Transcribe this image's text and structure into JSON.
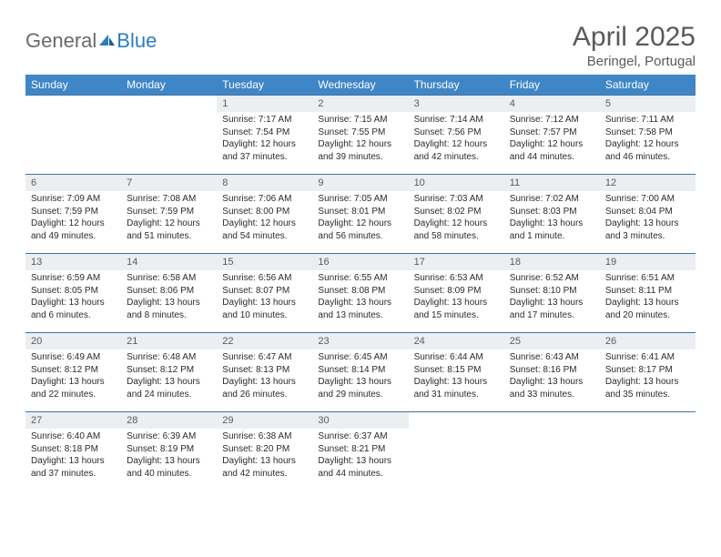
{
  "logo": {
    "first": "General",
    "second": "Blue"
  },
  "header": {
    "month_title": "April 2025",
    "location": "Beringel, Portugal"
  },
  "colors": {
    "header_bg": "#3f86c7",
    "row_divider": "#3f72a3",
    "daynum_bg": "#eceff1",
    "text_muted": "#5a5a5a"
  },
  "weekdays": [
    "Sunday",
    "Monday",
    "Tuesday",
    "Wednesday",
    "Thursday",
    "Friday",
    "Saturday"
  ],
  "weeks": [
    {
      "cells": [
        null,
        null,
        {
          "day": "1",
          "sunrise": "Sunrise: 7:17 AM",
          "sunset": "Sunset: 7:54 PM",
          "daylight": "Daylight: 12 hours and 37 minutes."
        },
        {
          "day": "2",
          "sunrise": "Sunrise: 7:15 AM",
          "sunset": "Sunset: 7:55 PM",
          "daylight": "Daylight: 12 hours and 39 minutes."
        },
        {
          "day": "3",
          "sunrise": "Sunrise: 7:14 AM",
          "sunset": "Sunset: 7:56 PM",
          "daylight": "Daylight: 12 hours and 42 minutes."
        },
        {
          "day": "4",
          "sunrise": "Sunrise: 7:12 AM",
          "sunset": "Sunset: 7:57 PM",
          "daylight": "Daylight: 12 hours and 44 minutes."
        },
        {
          "day": "5",
          "sunrise": "Sunrise: 7:11 AM",
          "sunset": "Sunset: 7:58 PM",
          "daylight": "Daylight: 12 hours and 46 minutes."
        }
      ]
    },
    {
      "cells": [
        {
          "day": "6",
          "sunrise": "Sunrise: 7:09 AM",
          "sunset": "Sunset: 7:59 PM",
          "daylight": "Daylight: 12 hours and 49 minutes."
        },
        {
          "day": "7",
          "sunrise": "Sunrise: 7:08 AM",
          "sunset": "Sunset: 7:59 PM",
          "daylight": "Daylight: 12 hours and 51 minutes."
        },
        {
          "day": "8",
          "sunrise": "Sunrise: 7:06 AM",
          "sunset": "Sunset: 8:00 PM",
          "daylight": "Daylight: 12 hours and 54 minutes."
        },
        {
          "day": "9",
          "sunrise": "Sunrise: 7:05 AM",
          "sunset": "Sunset: 8:01 PM",
          "daylight": "Daylight: 12 hours and 56 minutes."
        },
        {
          "day": "10",
          "sunrise": "Sunrise: 7:03 AM",
          "sunset": "Sunset: 8:02 PM",
          "daylight": "Daylight: 12 hours and 58 minutes."
        },
        {
          "day": "11",
          "sunrise": "Sunrise: 7:02 AM",
          "sunset": "Sunset: 8:03 PM",
          "daylight": "Daylight: 13 hours and 1 minute."
        },
        {
          "day": "12",
          "sunrise": "Sunrise: 7:00 AM",
          "sunset": "Sunset: 8:04 PM",
          "daylight": "Daylight: 13 hours and 3 minutes."
        }
      ]
    },
    {
      "cells": [
        {
          "day": "13",
          "sunrise": "Sunrise: 6:59 AM",
          "sunset": "Sunset: 8:05 PM",
          "daylight": "Daylight: 13 hours and 6 minutes."
        },
        {
          "day": "14",
          "sunrise": "Sunrise: 6:58 AM",
          "sunset": "Sunset: 8:06 PM",
          "daylight": "Daylight: 13 hours and 8 minutes."
        },
        {
          "day": "15",
          "sunrise": "Sunrise: 6:56 AM",
          "sunset": "Sunset: 8:07 PM",
          "daylight": "Daylight: 13 hours and 10 minutes."
        },
        {
          "day": "16",
          "sunrise": "Sunrise: 6:55 AM",
          "sunset": "Sunset: 8:08 PM",
          "daylight": "Daylight: 13 hours and 13 minutes."
        },
        {
          "day": "17",
          "sunrise": "Sunrise: 6:53 AM",
          "sunset": "Sunset: 8:09 PM",
          "daylight": "Daylight: 13 hours and 15 minutes."
        },
        {
          "day": "18",
          "sunrise": "Sunrise: 6:52 AM",
          "sunset": "Sunset: 8:10 PM",
          "daylight": "Daylight: 13 hours and 17 minutes."
        },
        {
          "day": "19",
          "sunrise": "Sunrise: 6:51 AM",
          "sunset": "Sunset: 8:11 PM",
          "daylight": "Daylight: 13 hours and 20 minutes."
        }
      ]
    },
    {
      "cells": [
        {
          "day": "20",
          "sunrise": "Sunrise: 6:49 AM",
          "sunset": "Sunset: 8:12 PM",
          "daylight": "Daylight: 13 hours and 22 minutes."
        },
        {
          "day": "21",
          "sunrise": "Sunrise: 6:48 AM",
          "sunset": "Sunset: 8:12 PM",
          "daylight": "Daylight: 13 hours and 24 minutes."
        },
        {
          "day": "22",
          "sunrise": "Sunrise: 6:47 AM",
          "sunset": "Sunset: 8:13 PM",
          "daylight": "Daylight: 13 hours and 26 minutes."
        },
        {
          "day": "23",
          "sunrise": "Sunrise: 6:45 AM",
          "sunset": "Sunset: 8:14 PM",
          "daylight": "Daylight: 13 hours and 29 minutes."
        },
        {
          "day": "24",
          "sunrise": "Sunrise: 6:44 AM",
          "sunset": "Sunset: 8:15 PM",
          "daylight": "Daylight: 13 hours and 31 minutes."
        },
        {
          "day": "25",
          "sunrise": "Sunrise: 6:43 AM",
          "sunset": "Sunset: 8:16 PM",
          "daylight": "Daylight: 13 hours and 33 minutes."
        },
        {
          "day": "26",
          "sunrise": "Sunrise: 6:41 AM",
          "sunset": "Sunset: 8:17 PM",
          "daylight": "Daylight: 13 hours and 35 minutes."
        }
      ]
    },
    {
      "cells": [
        {
          "day": "27",
          "sunrise": "Sunrise: 6:40 AM",
          "sunset": "Sunset: 8:18 PM",
          "daylight": "Daylight: 13 hours and 37 minutes."
        },
        {
          "day": "28",
          "sunrise": "Sunrise: 6:39 AM",
          "sunset": "Sunset: 8:19 PM",
          "daylight": "Daylight: 13 hours and 40 minutes."
        },
        {
          "day": "29",
          "sunrise": "Sunrise: 6:38 AM",
          "sunset": "Sunset: 8:20 PM",
          "daylight": "Daylight: 13 hours and 42 minutes."
        },
        {
          "day": "30",
          "sunrise": "Sunrise: 6:37 AM",
          "sunset": "Sunset: 8:21 PM",
          "daylight": "Daylight: 13 hours and 44 minutes."
        },
        null,
        null,
        null
      ]
    }
  ]
}
